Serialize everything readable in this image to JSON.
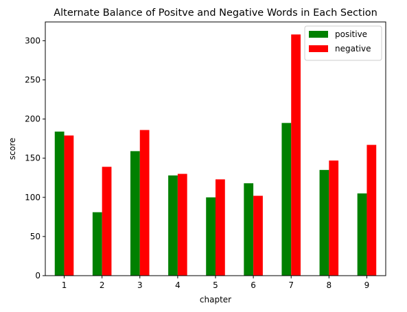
{
  "chart_data": {
    "type": "bar",
    "title": "Alternate Balance of Positve and Negative Words in Each Section",
    "xlabel": "chapter",
    "ylabel": "score",
    "categories": [
      "1",
      "2",
      "3",
      "4",
      "5",
      "6",
      "7",
      "8",
      "9"
    ],
    "series": [
      {
        "name": "positive",
        "color": "#008000",
        "values": [
          184,
          81,
          159,
          128,
          100,
          118,
          195,
          135,
          105
        ]
      },
      {
        "name": "negative",
        "color": "#ff0000",
        "values": [
          179,
          139,
          186,
          130,
          123,
          102,
          308,
          147,
          167
        ]
      }
    ],
    "ylim": [
      0,
      324
    ],
    "yticks": [
      0,
      50,
      100,
      150,
      200,
      250,
      300
    ],
    "grid": false,
    "legend": "top-right"
  }
}
